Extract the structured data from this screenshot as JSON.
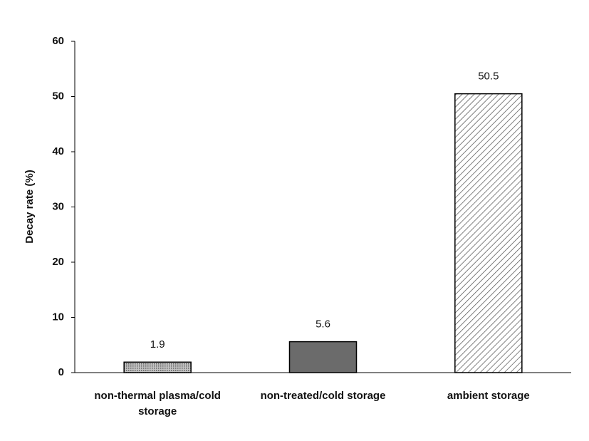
{
  "chart_data": {
    "type": "bar",
    "y_label": "Decay rate (%)",
    "categories": [
      "non-thermal plasma/cold storage",
      "non-treated/cold storage",
      "ambient storage"
    ],
    "values": [
      1.9,
      5.6,
      50.5
    ],
    "colors": [
      "#c4c4c4",
      "#6b6b6b",
      "#ffffff"
    ],
    "ylim": [
      0,
      60
    ],
    "yticks": [
      0,
      10,
      20,
      30,
      40,
      50,
      60
    ],
    "grid": false
  }
}
